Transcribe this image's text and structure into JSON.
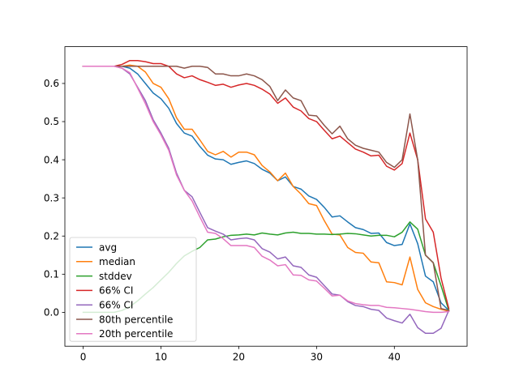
{
  "chart_data": {
    "type": "line",
    "title": "",
    "xlabel": "",
    "ylabel": "",
    "xlim": [
      -2.35,
      49.35
    ],
    "ylim": [
      -0.0888,
      0.6964
    ],
    "xticks": [
      0,
      10,
      20,
      30,
      40
    ],
    "yticks": [
      0.0,
      0.1,
      0.2,
      0.3,
      0.4,
      0.5,
      0.6
    ],
    "xtick_labels": [
      "0",
      "10",
      "20",
      "30",
      "40"
    ],
    "ytick_labels": [
      "0.0",
      "0.1",
      "0.2",
      "0.3",
      "0.4",
      "0.5",
      "0.6"
    ],
    "legend_position": "lower-left",
    "x": [
      0,
      1,
      2,
      3,
      4,
      5,
      6,
      7,
      8,
      9,
      10,
      11,
      12,
      13,
      14,
      15,
      16,
      17,
      18,
      19,
      20,
      21,
      22,
      23,
      24,
      25,
      26,
      27,
      28,
      29,
      30,
      31,
      32,
      33,
      34,
      35,
      36,
      37,
      38,
      39,
      40,
      41,
      42,
      43,
      44,
      45,
      46,
      47
    ],
    "series": [
      {
        "name": "avg",
        "color": "#1f77b4",
        "values": [
          0.645,
          0.645,
          0.645,
          0.645,
          0.645,
          0.645,
          0.64,
          0.625,
          0.6,
          0.575,
          0.56,
          0.535,
          0.495,
          0.47,
          0.462,
          0.435,
          0.412,
          0.402,
          0.4,
          0.388,
          0.393,
          0.397,
          0.39,
          0.375,
          0.365,
          0.345,
          0.355,
          0.33,
          0.323,
          0.305,
          0.296,
          0.275,
          0.25,
          0.253,
          0.237,
          0.222,
          0.217,
          0.207,
          0.208,
          0.183,
          0.175,
          0.178,
          0.232,
          0.18,
          0.095,
          0.08,
          0.025,
          0.005
        ]
      },
      {
        "name": "median",
        "color": "#ff7f0e",
        "values": [
          0.645,
          0.645,
          0.645,
          0.645,
          0.645,
          0.645,
          0.648,
          0.645,
          0.63,
          0.6,
          0.59,
          0.56,
          0.51,
          0.48,
          0.48,
          0.452,
          0.422,
          0.413,
          0.422,
          0.407,
          0.42,
          0.42,
          0.413,
          0.385,
          0.368,
          0.345,
          0.365,
          0.33,
          0.31,
          0.285,
          0.28,
          0.24,
          0.205,
          0.203,
          0.17,
          0.157,
          0.155,
          0.132,
          0.13,
          0.08,
          0.078,
          0.072,
          0.145,
          0.06,
          0.025,
          0.015,
          0.008,
          0.003
        ]
      },
      {
        "name": "stddev",
        "color": "#2ca02c",
        "values": [
          0.0,
          0.0,
          0.0,
          0.0,
          0.0,
          0.005,
          0.015,
          0.03,
          0.048,
          0.065,
          0.085,
          0.105,
          0.128,
          0.148,
          0.16,
          0.17,
          0.19,
          0.192,
          0.198,
          0.202,
          0.203,
          0.205,
          0.203,
          0.208,
          0.205,
          0.203,
          0.208,
          0.21,
          0.207,
          0.207,
          0.205,
          0.205,
          0.204,
          0.205,
          0.207,
          0.206,
          0.203,
          0.2,
          0.202,
          0.202,
          0.198,
          0.21,
          0.237,
          0.218,
          0.15,
          0.13,
          0.07,
          0.005
        ]
      },
      {
        "name": "66% CI",
        "color": "#d62728",
        "values": [
          0.645,
          0.645,
          0.645,
          0.645,
          0.645,
          0.65,
          0.66,
          0.66,
          0.657,
          0.652,
          0.652,
          0.645,
          0.625,
          0.615,
          0.62,
          0.61,
          0.603,
          0.595,
          0.598,
          0.59,
          0.596,
          0.6,
          0.595,
          0.585,
          0.572,
          0.548,
          0.562,
          0.538,
          0.528,
          0.508,
          0.5,
          0.477,
          0.455,
          0.462,
          0.445,
          0.428,
          0.42,
          0.41,
          0.412,
          0.383,
          0.373,
          0.39,
          0.47,
          0.4,
          0.245,
          0.21,
          0.09,
          0.01
        ]
      },
      {
        "name": "66% CI",
        "color": "#9467bd",
        "values": [
          0.645,
          0.645,
          0.645,
          0.645,
          0.645,
          0.64,
          0.625,
          0.59,
          0.555,
          0.505,
          0.47,
          0.43,
          0.365,
          0.32,
          0.303,
          0.262,
          0.222,
          0.213,
          0.205,
          0.19,
          0.193,
          0.195,
          0.19,
          0.167,
          0.158,
          0.14,
          0.145,
          0.122,
          0.118,
          0.098,
          0.092,
          0.07,
          0.048,
          0.045,
          0.028,
          0.018,
          0.015,
          0.008,
          0.005,
          -0.015,
          -0.022,
          -0.028,
          -0.005,
          -0.04,
          -0.055,
          -0.055,
          -0.042,
          0.005
        ]
      },
      {
        "name": "80th percentile",
        "color": "#8c564b",
        "values": [
          0.645,
          0.645,
          0.645,
          0.645,
          0.645,
          0.645,
          0.645,
          0.645,
          0.645,
          0.645,
          0.645,
          0.645,
          0.645,
          0.64,
          0.645,
          0.645,
          0.642,
          0.625,
          0.625,
          0.62,
          0.62,
          0.625,
          0.62,
          0.61,
          0.592,
          0.555,
          0.583,
          0.562,
          0.555,
          0.517,
          0.515,
          0.49,
          0.468,
          0.488,
          0.455,
          0.438,
          0.43,
          0.425,
          0.42,
          0.393,
          0.38,
          0.4,
          0.52,
          0.4,
          0.15,
          0.13,
          0.01,
          0.005
        ]
      },
      {
        "name": "20th percentile",
        "color": "#e377c2",
        "values": [
          0.645,
          0.645,
          0.645,
          0.645,
          0.645,
          0.64,
          0.628,
          0.588,
          0.547,
          0.5,
          0.465,
          0.425,
          0.36,
          0.32,
          0.292,
          0.25,
          0.21,
          0.207,
          0.193,
          0.175,
          0.175,
          0.175,
          0.17,
          0.147,
          0.137,
          0.122,
          0.125,
          0.098,
          0.097,
          0.085,
          0.082,
          0.063,
          0.043,
          0.045,
          0.03,
          0.023,
          0.02,
          0.018,
          0.018,
          0.013,
          0.012,
          0.01,
          0.008,
          0.005,
          0.002,
          0.0,
          0.0,
          0.002
        ]
      }
    ]
  }
}
